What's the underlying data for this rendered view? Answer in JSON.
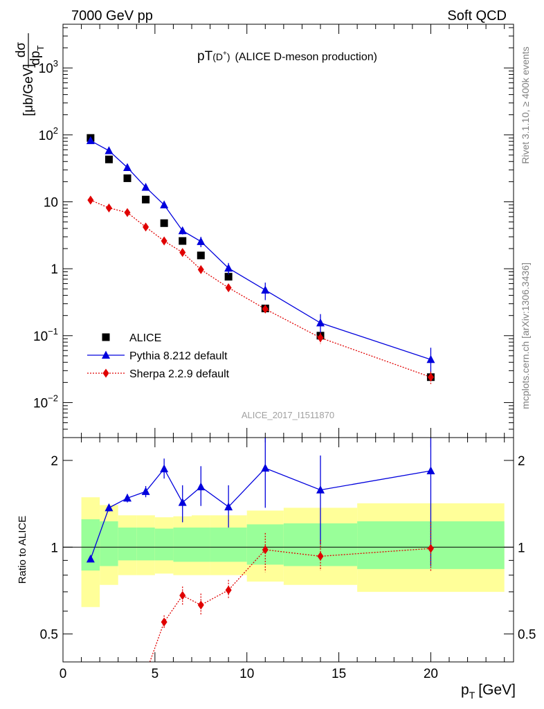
{
  "header": {
    "left": "7000 GeV pp",
    "right": "Soft QCD"
  },
  "side_labels": {
    "rivet": "Rivet 3.1.10, ≥ 400k events",
    "mcplots": "mcplots.cern.ch [arXiv:1306.3436]"
  },
  "chart_data": [
    {
      "type": "scatter",
      "panel": "main",
      "title_main": "pT",
      "title_sub": "(D",
      "title_sup": "+",
      "title_close": ")",
      "title_rest": "(ALICE D-meson production)",
      "watermark": "ALICE_2017_I1511870",
      "ylabel_num": "dσ",
      "ylabel_den": "dp",
      "ylabel_den_sub": "T",
      "ylabel_unit": "[μb/GeV]",
      "yscale": "log",
      "ylim": [
        0.003,
        4500
      ],
      "xlim": [
        0,
        24.5
      ],
      "y_ticks": [
        {
          "v": 0.01,
          "base": "10",
          "exp": "−2"
        },
        {
          "v": 0.1,
          "base": "10",
          "exp": "−1"
        },
        {
          "v": 1,
          "base": "1",
          "exp": ""
        },
        {
          "v": 10,
          "base": "10",
          "exp": ""
        },
        {
          "v": 100,
          "base": "10",
          "exp": "2"
        },
        {
          "v": 1000,
          "base": "10",
          "exp": "3"
        }
      ],
      "legend_position": "lower-left",
      "series": [
        {
          "name": "ALICE",
          "color": "#000000",
          "marker": "square",
          "line": "none",
          "x": [
            1.5,
            2.5,
            3.5,
            4.5,
            5.5,
            6.5,
            7.5,
            9,
            11,
            14,
            20
          ],
          "y": [
            90,
            43,
            22.5,
            10.8,
            4.8,
            2.6,
            1.58,
            0.76,
            0.255,
            0.1,
            0.024
          ]
        },
        {
          "name": "Pythia 8.212 default",
          "color": "#0000dd",
          "marker": "triangle",
          "line": "solid",
          "x": [
            1.5,
            2.5,
            3.5,
            4.5,
            5.5,
            6.5,
            7.5,
            9,
            11,
            14,
            20
          ],
          "y": [
            82,
            58,
            32.5,
            16.5,
            9,
            3.7,
            2.55,
            1.02,
            0.48,
            0.155,
            0.044
          ],
          "err": [
            5,
            3.5,
            2.2,
            1.1,
            0.7,
            0.45,
            0.45,
            0.2,
            0.14,
            0.055,
            0.022
          ]
        },
        {
          "name": "Sherpa 2.2.9 default",
          "color": "#e00000",
          "marker": "diamond",
          "line": "dotted",
          "x": [
            1.5,
            2.5,
            3.5,
            4.5,
            5.5,
            6.5,
            7.5,
            9,
            11,
            14,
            20
          ],
          "y": [
            10.6,
            8.1,
            6.9,
            4.2,
            2.6,
            1.75,
            0.97,
            0.52,
            0.25,
            0.093,
            0.024
          ],
          "err": [
            0.6,
            0.45,
            0.35,
            0.25,
            0.18,
            0.15,
            0.1,
            0.06,
            0.035,
            0.018,
            0.005
          ]
        }
      ]
    },
    {
      "type": "scatter",
      "panel": "ratio",
      "ylabel": "Ratio to ALICE",
      "yscale": "log",
      "ylim": [
        0.4,
        2.4
      ],
      "xlim": [
        0,
        24.5
      ],
      "xlabel": "p",
      "xlabel_sub": "T",
      "xlabel_unit": "[GeV]",
      "x_ticks": [
        0,
        5,
        10,
        15,
        20
      ],
      "y_ticks": [
        "0.5",
        "1",
        "2"
      ],
      "y_tick_values": [
        0.5,
        1,
        2
      ],
      "reference_line": 1,
      "bands": {
        "stat_color": "#99ff99",
        "total_color": "#ffff99",
        "bins": [
          {
            "x0": 1,
            "x1": 2,
            "stat": [
              0.83,
              1.25
            ],
            "total": [
              0.62,
              1.49
            ]
          },
          {
            "x0": 2,
            "x1": 3,
            "stat": [
              0.86,
              1.23
            ],
            "total": [
              0.74,
              1.4
            ]
          },
          {
            "x0": 3,
            "x1": 4,
            "stat": [
              0.9,
              1.17
            ],
            "total": [
              0.8,
              1.29
            ]
          },
          {
            "x0": 4,
            "x1": 5,
            "stat": [
              0.9,
              1.17
            ],
            "total": [
              0.8,
              1.29
            ]
          },
          {
            "x0": 5,
            "x1": 6,
            "stat": [
              0.9,
              1.16
            ],
            "total": [
              0.81,
              1.27
            ]
          },
          {
            "x0": 6,
            "x1": 7,
            "stat": [
              0.89,
              1.17
            ],
            "total": [
              0.8,
              1.28
            ]
          },
          {
            "x0": 7,
            "x1": 8,
            "stat": [
              0.89,
              1.17
            ],
            "total": [
              0.8,
              1.29
            ]
          },
          {
            "x0": 8,
            "x1": 10,
            "stat": [
              0.89,
              1.17
            ],
            "total": [
              0.8,
              1.29
            ]
          },
          {
            "x0": 10,
            "x1": 12,
            "stat": [
              0.87,
              1.2
            ],
            "total": [
              0.76,
              1.34
            ]
          },
          {
            "x0": 12,
            "x1": 16,
            "stat": [
              0.86,
              1.21
            ],
            "total": [
              0.74,
              1.37
            ]
          },
          {
            "x0": 16,
            "x1": 24,
            "stat": [
              0.84,
              1.23
            ],
            "total": [
              0.7,
              1.42
            ]
          }
        ]
      },
      "series": [
        {
          "name": "Pythia 8.212 default",
          "color": "#0000dd",
          "marker": "triangle",
          "line": "solid",
          "x": [
            1.5,
            2.5,
            3.5,
            4.5,
            5.5,
            6.5,
            7.5,
            9,
            11,
            14,
            20
          ],
          "y": [
            0.91,
            1.37,
            1.48,
            1.56,
            1.87,
            1.43,
            1.62,
            1.38,
            1.88,
            1.58,
            1.84
          ],
          "lo": [
            0.89,
            1.33,
            1.43,
            1.49,
            1.73,
            1.22,
            1.39,
            1.17,
            1.37,
            1.02,
            0.86
          ],
          "hi": [
            0.93,
            1.41,
            1.53,
            1.63,
            2.03,
            1.64,
            1.91,
            1.64,
            2.5,
            2.08,
            2.5
          ]
        },
        {
          "name": "Sherpa 2.2.9 default",
          "color": "#e00000",
          "marker": "diamond",
          "line": "dotted",
          "x": [
            5.5,
            6.5,
            7.5,
            9,
            11,
            14,
            20
          ],
          "y": [
            0.55,
            0.68,
            0.63,
            0.71,
            0.98,
            0.93,
            0.99
          ],
          "lo": [
            0.52,
            0.63,
            0.58,
            0.66,
            0.82,
            0.83,
            0.82
          ],
          "hi": [
            0.58,
            0.73,
            0.69,
            0.77,
            1.12,
            1.06,
            1.22
          ],
          "tail": {
            "x": 4.4,
            "y": 0.35
          }
        }
      ]
    }
  ]
}
